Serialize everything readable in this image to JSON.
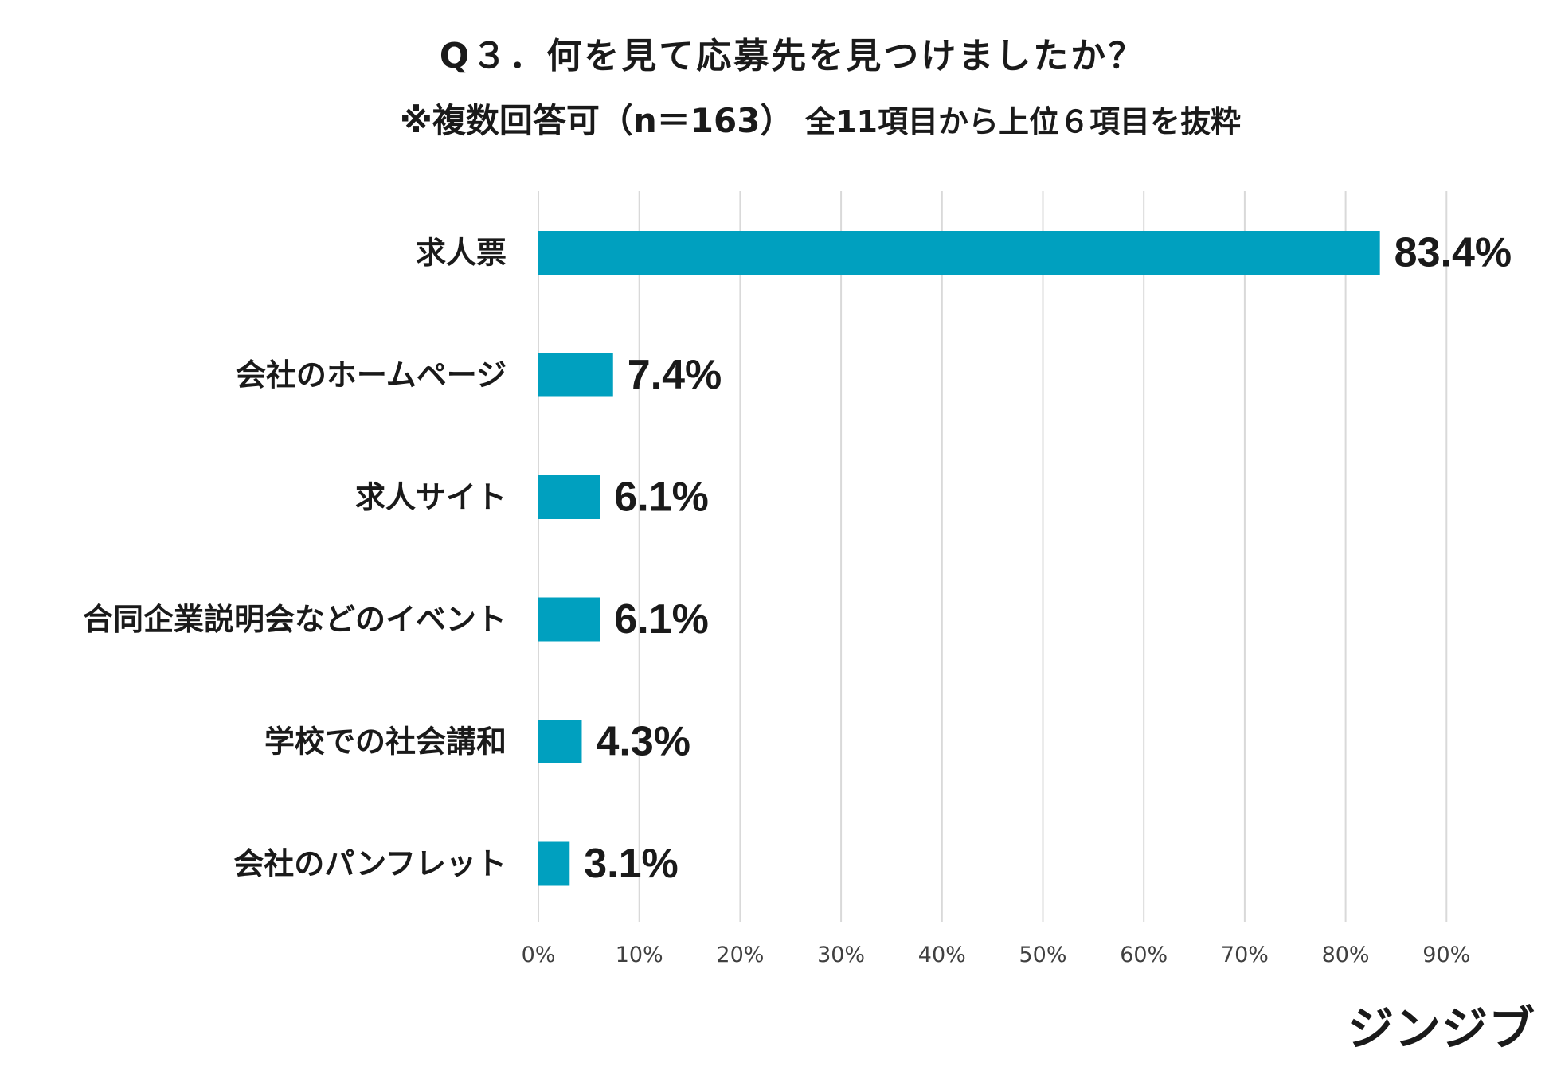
{
  "chart_data": {
    "type": "bar",
    "orientation": "horizontal",
    "title": "Q３．何を見て応募先を見つけましたか？",
    "subtitle_main": "※複数回答可（n＝163）",
    "subtitle_note": "全11項目から上位６項目を抜粋",
    "categories": [
      "求人票",
      "会社のホームページ",
      "求人サイト",
      "合同企業説明会などのイベント",
      "学校での社会講和",
      "会社のパンフレット"
    ],
    "values": [
      83.4,
      7.4,
      6.1,
      6.1,
      4.3,
      3.1
    ],
    "data_labels": [
      "83.4%",
      "7.4%",
      "6.1%",
      "6.1%",
      "4.3%",
      "3.1%"
    ],
    "xlim": [
      0,
      90
    ],
    "x_ticks": [
      0,
      10,
      20,
      30,
      40,
      50,
      60,
      70,
      80,
      90
    ],
    "x_tick_labels": [
      "0%",
      "10%",
      "20%",
      "30%",
      "40%",
      "50%",
      "60%",
      "70%",
      "80%",
      "90%"
    ],
    "grid": true,
    "bar_color": "#00A0BF",
    "grid_color": "#d9d9d9"
  },
  "brand": {
    "logo_text": "ジンジブ"
  }
}
